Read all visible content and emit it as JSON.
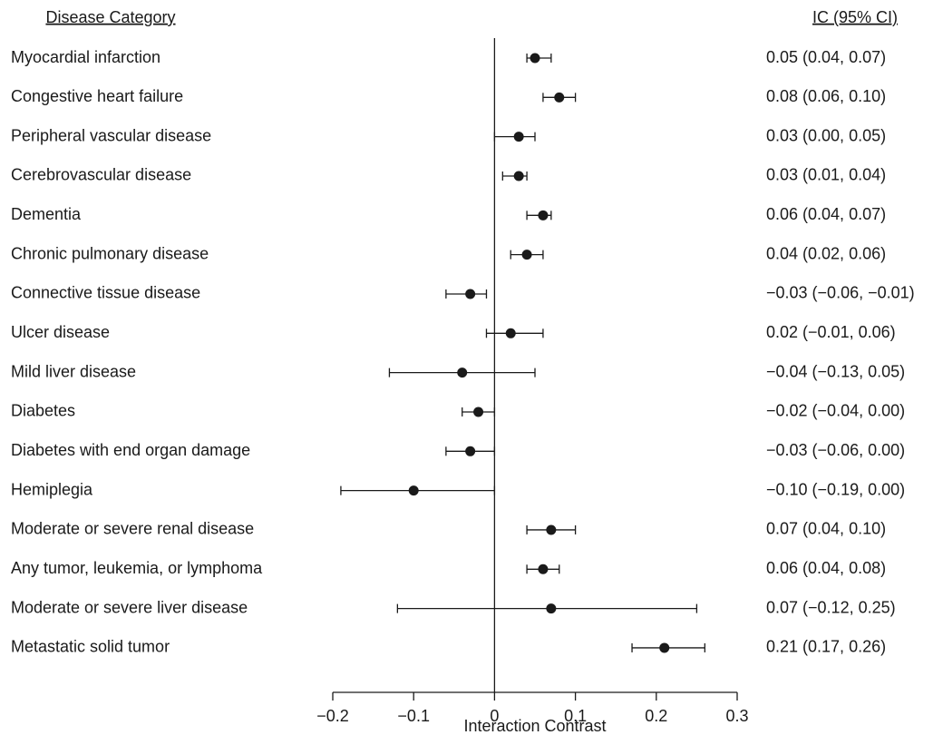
{
  "chart_data": {
    "type": "forest",
    "category_header": "Disease Category",
    "value_header": "IC (95% CI)",
    "xlabel": "Interaction Contrast",
    "categories": [
      "Myocardial infarction",
      "Congestive heart failure",
      "Peripheral vascular disease",
      "Cerebrovascular disease",
      "Dementia",
      "Chronic pulmonary disease",
      "Connective tissue disease",
      "Ulcer disease",
      "Mild liver disease",
      "Diabetes",
      "Diabetes with end organ damage",
      "Hemiplegia",
      "Moderate or severe renal disease",
      "Any tumor, leukemia, or lymphoma",
      "Moderate or severe liver disease",
      "Metastatic solid tumor"
    ],
    "values": [
      0.05,
      0.08,
      0.03,
      0.03,
      0.06,
      0.04,
      -0.03,
      0.02,
      -0.04,
      -0.02,
      -0.03,
      -0.1,
      0.07,
      0.06,
      0.07,
      0.21
    ],
    "lower": [
      0.04,
      0.06,
      0.0,
      0.01,
      0.04,
      0.02,
      -0.06,
      -0.01,
      -0.13,
      -0.04,
      -0.06,
      -0.19,
      0.04,
      0.04,
      -0.12,
      0.17
    ],
    "upper": [
      0.07,
      0.1,
      0.05,
      0.04,
      0.07,
      0.06,
      -0.01,
      0.06,
      0.05,
      0.0,
      0.0,
      0.0,
      0.1,
      0.08,
      0.25,
      0.26
    ],
    "value_labels": [
      "0.05 (0.04, 0.07)",
      "0.08 (0.06, 0.10)",
      "0.03 (0.00, 0.05)",
      "0.03 (0.01, 0.04)",
      "0.06 (0.04, 0.07)",
      "0.04 (0.02, 0.06)",
      "−0.03 (−0.06, −0.01)",
      "0.02 (−0.01, 0.06)",
      "−0.04 (−0.13, 0.05)",
      "−0.02 (−0.04, 0.00)",
      "−0.03 (−0.06, 0.00)",
      "−0.10 (−0.19, 0.00)",
      "0.07 (0.04, 0.10)",
      "0.06 (0.04, 0.08)",
      "0.07 (−0.12, 0.25)",
      "0.21 (0.17, 0.26)"
    ],
    "color": "#1a1a1a",
    "xlim": [
      -0.2,
      0.3
    ],
    "xticks": [
      {
        "value": -0.2,
        "label": "−0.2"
      },
      {
        "value": -0.1,
        "label": "−0.1"
      },
      0,
      0.1,
      0.2,
      0.3
    ],
    "reference_line": 0
  }
}
